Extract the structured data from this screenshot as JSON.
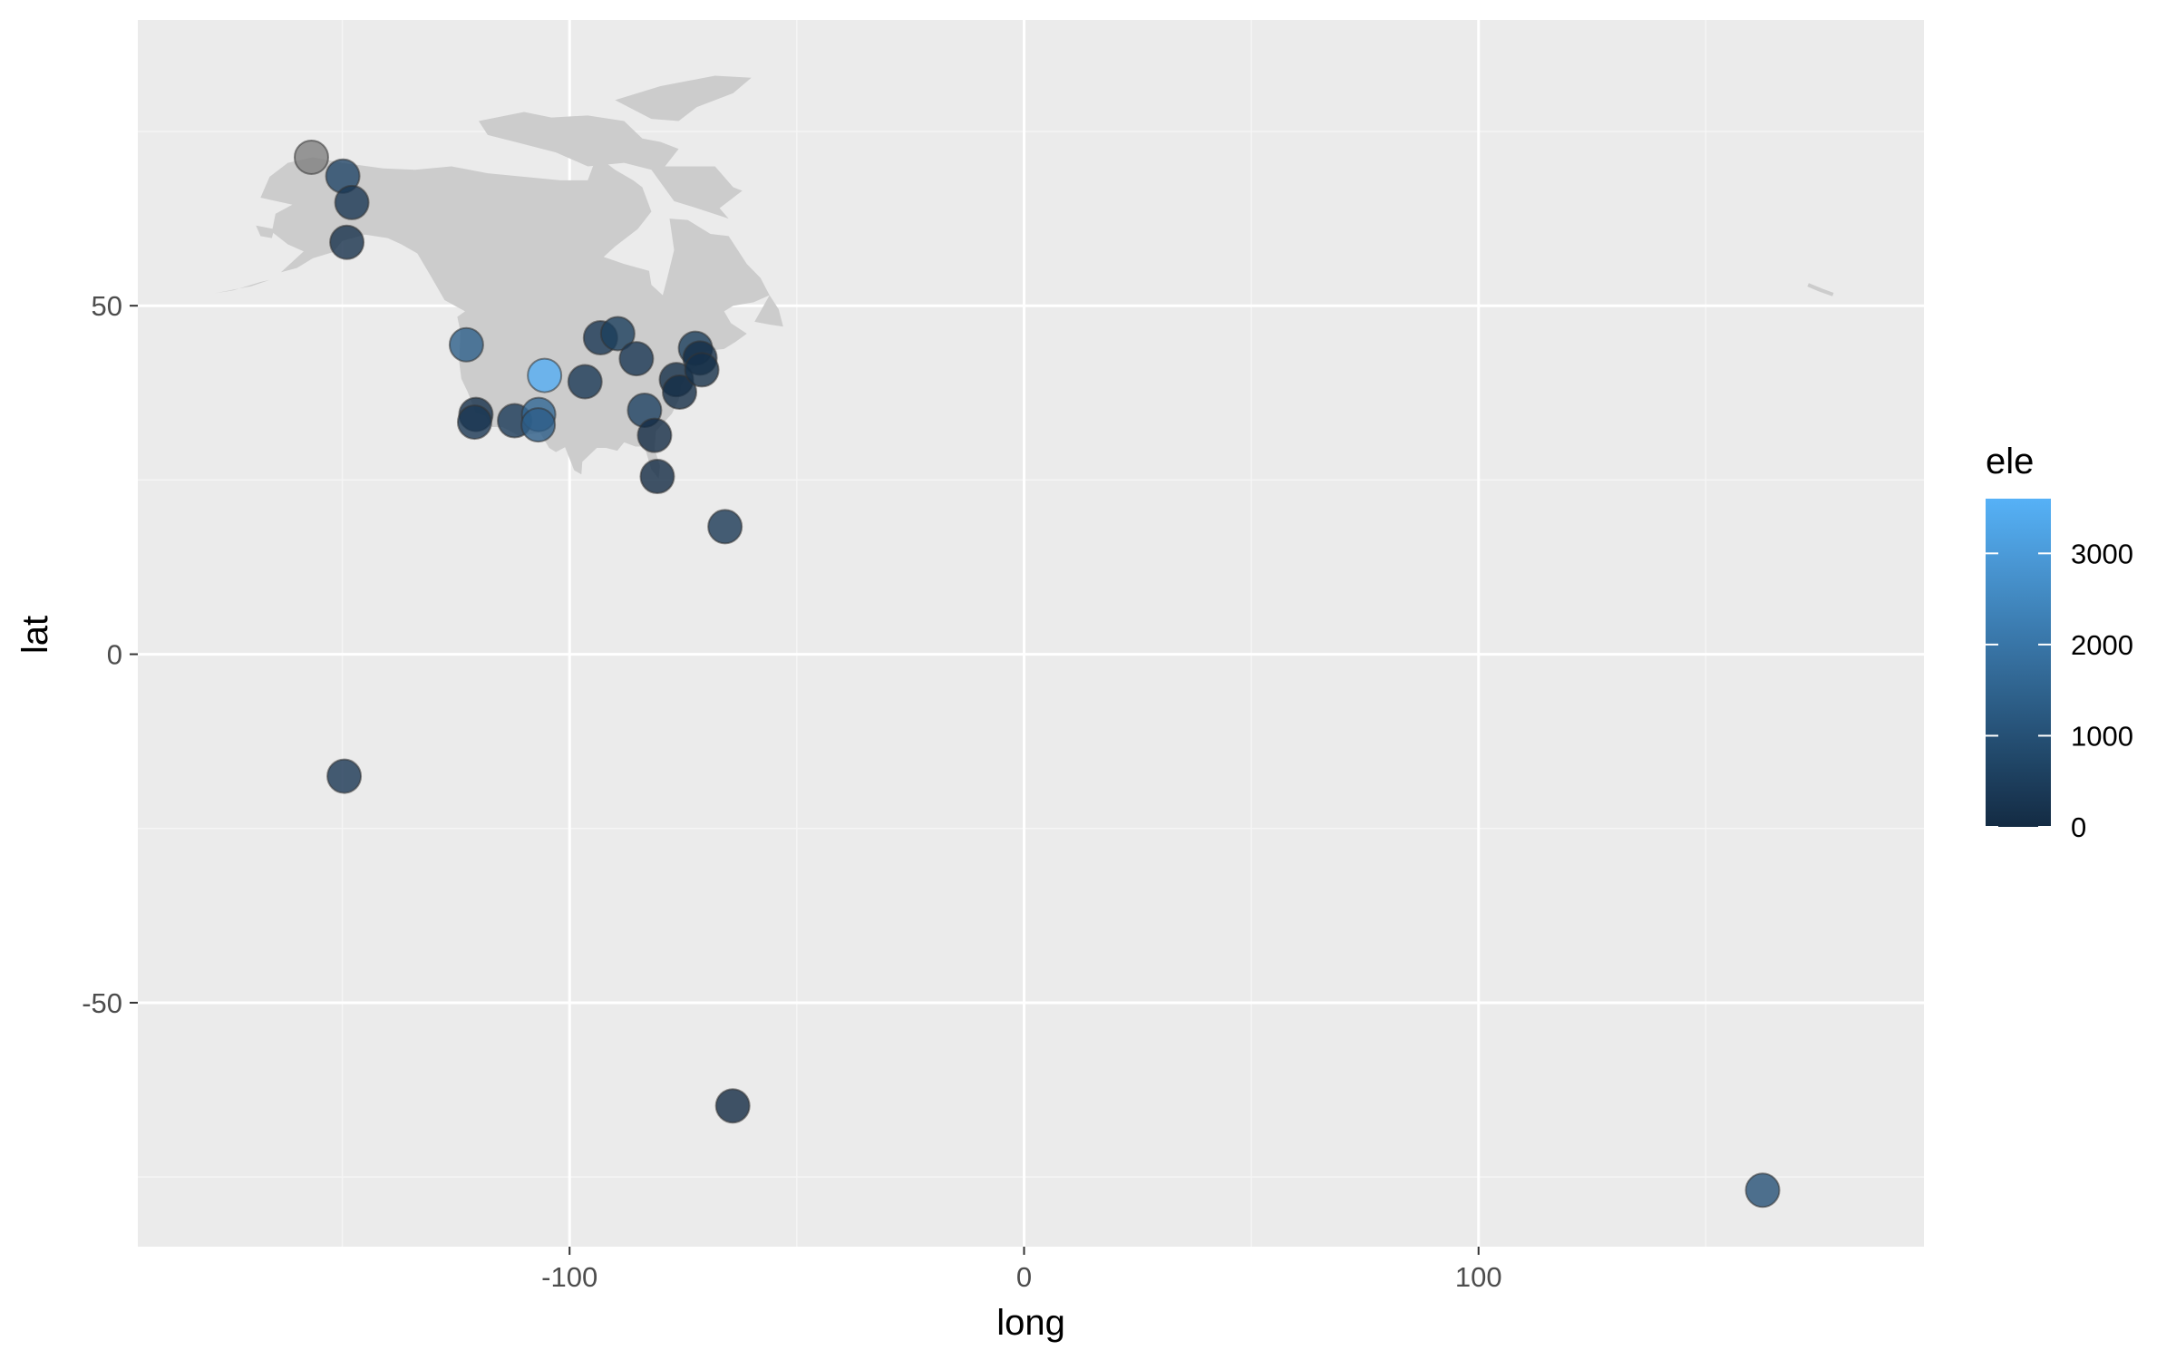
{
  "colors": {
    "panel_background": "#ebebeb",
    "grid_major": "#ffffff",
    "grid_minor": "#f5f5f5",
    "land": "#cccccc",
    "low": "#132b43",
    "high": "#56b1f7",
    "na_point": "#7f7f7f"
  },
  "chart_data": {
    "type": "scatter",
    "title": "",
    "xlabel": "long",
    "ylabel": "lat",
    "xlim": [
      -195,
      198
    ],
    "ylim": [
      -85,
      91
    ],
    "x_ticks": [
      -100,
      0,
      100
    ],
    "x_tick_labels": [
      "-100",
      "0",
      "100"
    ],
    "y_ticks": [
      -50,
      0,
      50
    ],
    "y_tick_labels": [
      "-50",
      "0",
      "50"
    ],
    "grid": true,
    "background_map": "North America land outline",
    "legend": {
      "title": "ele",
      "type": "colorbar",
      "range": [
        0,
        3600
      ],
      "ticks": [
        0,
        1000,
        2000,
        3000
      ],
      "tick_labels": [
        "0",
        "1000",
        "2000",
        "3000"
      ],
      "placement": "right"
    },
    "points": [
      {
        "long": -156.8,
        "lat": 71.3,
        "ele": null
      },
      {
        "long": -149.9,
        "lat": 68.6,
        "ele": 700
      },
      {
        "long": -147.9,
        "lat": 64.8,
        "ele": 300
      },
      {
        "long": -149.0,
        "lat": 59.1,
        "ele": 150
      },
      {
        "long": -122.7,
        "lat": 44.4,
        "ele": 1400
      },
      {
        "long": -105.5,
        "lat": 40.0,
        "ele": 3500
      },
      {
        "long": -120.6,
        "lat": 34.4,
        "ele": 150
      },
      {
        "long": -120.9,
        "lat": 33.3,
        "ele": 300
      },
      {
        "long": -112.1,
        "lat": 33.5,
        "ele": 400
      },
      {
        "long": -106.8,
        "lat": 34.4,
        "ele": 1600
      },
      {
        "long": -106.9,
        "lat": 32.9,
        "ele": 1350
      },
      {
        "long": -96.6,
        "lat": 39.1,
        "ele": 350
      },
      {
        "long": -93.2,
        "lat": 45.4,
        "ele": 300
      },
      {
        "long": -89.4,
        "lat": 46.0,
        "ele": 500
      },
      {
        "long": -85.3,
        "lat": 42.4,
        "ele": 300
      },
      {
        "long": -83.5,
        "lat": 35.0,
        "ele": 600
      },
      {
        "long": -81.3,
        "lat": 31.4,
        "ele": 5
      },
      {
        "long": -80.7,
        "lat": 25.5,
        "ele": 5
      },
      {
        "long": -76.5,
        "lat": 39.4,
        "ele": 100
      },
      {
        "long": -75.8,
        "lat": 37.6,
        "ele": 50
      },
      {
        "long": -72.3,
        "lat": 43.9,
        "ele": 500
      },
      {
        "long": -71.3,
        "lat": 42.5,
        "ele": 50
      },
      {
        "long": -70.9,
        "lat": 40.8,
        "ele": 100
      },
      {
        "long": -65.8,
        "lat": 18.3,
        "ele": 350
      },
      {
        "long": -149.6,
        "lat": -17.5,
        "ele": 300
      },
      {
        "long": -64.1,
        "lat": -64.8,
        "ele": 10
      },
      {
        "long": 162.5,
        "lat": -76.9,
        "ele": 1000
      }
    ]
  }
}
